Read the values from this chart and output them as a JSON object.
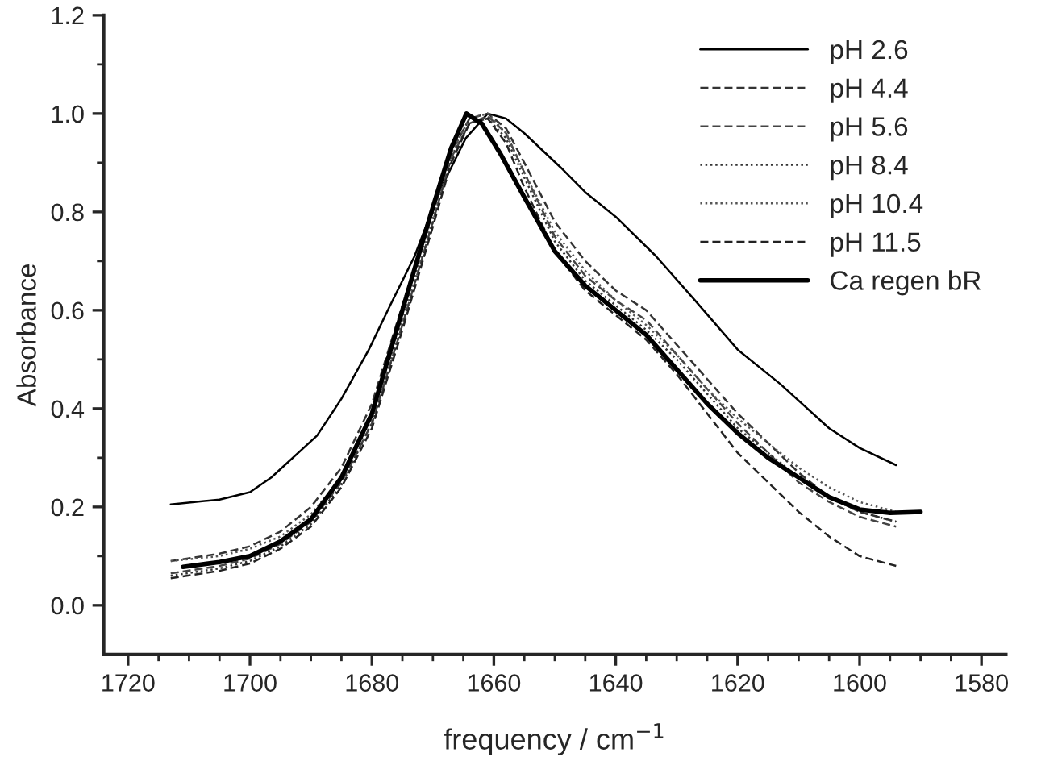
{
  "chart_data": {
    "type": "line",
    "xlabel": "frequency / cm$^{−1}$",
    "ylabel": "Absorbance",
    "xlim": [
      1724,
      1576
    ],
    "ylim": [
      -0.1,
      1.2
    ],
    "xticks": [
      1720,
      {
        "value": 1715,
        "label": null
      },
      {
        "value": 1710,
        "label": null
      },
      {
        "value": 1705,
        "label": null
      },
      1700,
      {
        "value": 1695,
        "label": null
      },
      {
        "value": 1690,
        "label": null
      },
      {
        "value": 1685,
        "label": null
      },
      1680,
      {
        "value": 1675,
        "label": null
      },
      {
        "value": 1670,
        "label": null
      },
      {
        "value": 1665,
        "label": null
      },
      1660,
      {
        "value": 1655,
        "label": null
      },
      {
        "value": 1650,
        "label": null
      },
      {
        "value": 1645,
        "label": null
      },
      1640,
      {
        "value": 1635,
        "label": null
      },
      {
        "value": 1630,
        "label": null
      },
      {
        "value": 1625,
        "label": null
      },
      1620,
      {
        "value": 1615,
        "label": null
      },
      {
        "value": 1610,
        "label": null
      },
      {
        "value": 1605,
        "label": null
      },
      1600,
      {
        "value": 1595,
        "label": null
      },
      {
        "value": 1590,
        "label": null
      },
      {
        "value": 1585,
        "label": null
      },
      1580
    ],
    "yticks": [
      {
        "value": 0,
        "label": "0.0"
      },
      {
        "value": 0.1,
        "label": null
      },
      {
        "value": 0.2,
        "label": "0.2"
      },
      {
        "value": 0.3,
        "label": null
      },
      {
        "value": 0.4,
        "label": "0.4"
      },
      {
        "value": 0.5,
        "label": null
      },
      {
        "value": 0.6,
        "label": "0.6"
      },
      {
        "value": 0.7,
        "label": null
      },
      {
        "value": 0.8,
        "label": "0.8"
      },
      {
        "value": 0.9,
        "label": null
      },
      {
        "value": 1.0,
        "label": "1.0"
      },
      {
        "value": 1.1,
        "label": null
      },
      {
        "value": 1.2,
        "label": "1.2"
      }
    ],
    "grid": false,
    "legend": "top right",
    "marker": "none",
    "series": [
      {
        "name": "pH 2.6",
        "color": "#000000",
        "line_style": "solid",
        "x": [
          1713,
          1705,
          1700,
          1696.5,
          1689,
          1685,
          1680.5,
          1677,
          1673,
          1669,
          1664.6,
          1661,
          1658,
          1655,
          1649,
          1645,
          1640,
          1633.4,
          1627,
          1620,
          1613,
          1605,
          1600,
          1594
        ],
        "values": [
          0.205,
          0.215,
          0.23,
          0.26,
          0.345,
          0.42,
          0.52,
          0.61,
          0.71,
          0.84,
          0.95,
          1.0,
          0.99,
          0.96,
          0.89,
          0.84,
          0.79,
          0.71,
          0.62,
          0.52,
          0.45,
          0.36,
          0.32,
          0.285
        ]
      },
      {
        "name": "pH 4.4",
        "color": "#333333",
        "line_style": "dashed",
        "x": [
          1713,
          1705,
          1700,
          1695,
          1690,
          1685,
          1680,
          1675,
          1670,
          1667,
          1664,
          1661,
          1658,
          1655,
          1650,
          1645,
          1640,
          1635,
          1630,
          1625,
          1620,
          1615,
          1610,
          1605,
          1600,
          1594
        ],
        "values": [
          0.09,
          0.105,
          0.12,
          0.15,
          0.2,
          0.28,
          0.41,
          0.61,
          0.8,
          0.92,
          0.99,
          1.0,
          0.97,
          0.9,
          0.78,
          0.7,
          0.64,
          0.6,
          0.53,
          0.46,
          0.39,
          0.33,
          0.27,
          0.22,
          0.19,
          0.17
        ]
      },
      {
        "name": "pH 5.6",
        "color": "#444444",
        "line_style": "dashed",
        "x": [
          1713,
          1705,
          1700,
          1695,
          1690,
          1685,
          1680,
          1675,
          1670,
          1667,
          1664,
          1661,
          1658,
          1655,
          1650,
          1645,
          1640,
          1635,
          1630,
          1625,
          1620,
          1615,
          1610,
          1605,
          1600,
          1594
        ],
        "values": [
          0.065,
          0.08,
          0.095,
          0.125,
          0.17,
          0.25,
          0.37,
          0.57,
          0.78,
          0.91,
          0.98,
          0.995,
          0.96,
          0.88,
          0.75,
          0.67,
          0.62,
          0.58,
          0.51,
          0.44,
          0.37,
          0.31,
          0.25,
          0.21,
          0.18,
          0.16
        ]
      },
      {
        "name": "pH 8.4",
        "color": "#333333",
        "line_style": "dotted",
        "x": [
          1713,
          1705,
          1700,
          1695,
          1690,
          1685,
          1680,
          1675,
          1670,
          1667,
          1664,
          1661,
          1658,
          1655,
          1650,
          1645,
          1640,
          1635,
          1630,
          1625,
          1620,
          1615,
          1610,
          1605,
          1600,
          1594
        ],
        "values": [
          0.06,
          0.075,
          0.09,
          0.12,
          0.165,
          0.245,
          0.37,
          0.57,
          0.78,
          0.91,
          0.98,
          0.99,
          0.95,
          0.87,
          0.74,
          0.66,
          0.61,
          0.56,
          0.5,
          0.43,
          0.36,
          0.31,
          0.26,
          0.22,
          0.19,
          0.17
        ]
      },
      {
        "name": "pH 10.4",
        "color": "#555555",
        "line_style": "dotted",
        "x": [
          1713,
          1705,
          1700,
          1695,
          1690,
          1685,
          1680,
          1675,
          1670,
          1667,
          1664,
          1661,
          1658,
          1655,
          1650,
          1645,
          1640,
          1635,
          1630,
          1625,
          1620,
          1615,
          1610,
          1605,
          1600,
          1594
        ],
        "values": [
          0.09,
          0.1,
          0.115,
          0.14,
          0.185,
          0.26,
          0.38,
          0.58,
          0.79,
          0.92,
          0.99,
          1.0,
          0.96,
          0.88,
          0.76,
          0.68,
          0.62,
          0.57,
          0.51,
          0.44,
          0.38,
          0.33,
          0.28,
          0.24,
          0.21,
          0.19
        ]
      },
      {
        "name": "pH 11.5",
        "color": "#222222",
        "line_style": "dashed",
        "x": [
          1713,
          1705,
          1700,
          1695,
          1690,
          1685,
          1680,
          1675,
          1670,
          1667,
          1664,
          1661,
          1658,
          1655,
          1650,
          1645,
          1640,
          1635,
          1630,
          1625,
          1620,
          1615,
          1610,
          1605,
          1600,
          1594
        ],
        "values": [
          0.055,
          0.07,
          0.085,
          0.115,
          0.16,
          0.24,
          0.36,
          0.56,
          0.77,
          0.9,
          0.98,
          0.99,
          0.94,
          0.85,
          0.72,
          0.64,
          0.59,
          0.54,
          0.47,
          0.39,
          0.31,
          0.25,
          0.19,
          0.14,
          0.1,
          0.08
        ]
      },
      {
        "name": "Ca regen bR",
        "color": "#000000",
        "line_style": "solid",
        "x": [
          1711,
          1705,
          1700,
          1695,
          1690,
          1685,
          1680,
          1675,
          1670,
          1667,
          1664.5,
          1662,
          1659,
          1655,
          1650,
          1645,
          1640,
          1635,
          1630,
          1625,
          1620,
          1615,
          1610,
          1605,
          1600,
          1595,
          1590
        ],
        "values": [
          0.078,
          0.088,
          0.1,
          0.13,
          0.175,
          0.26,
          0.39,
          0.6,
          0.81,
          0.93,
          1.0,
          0.98,
          0.92,
          0.83,
          0.72,
          0.65,
          0.6,
          0.55,
          0.48,
          0.41,
          0.35,
          0.3,
          0.26,
          0.22,
          0.195,
          0.188,
          0.19
        ]
      }
    ]
  }
}
